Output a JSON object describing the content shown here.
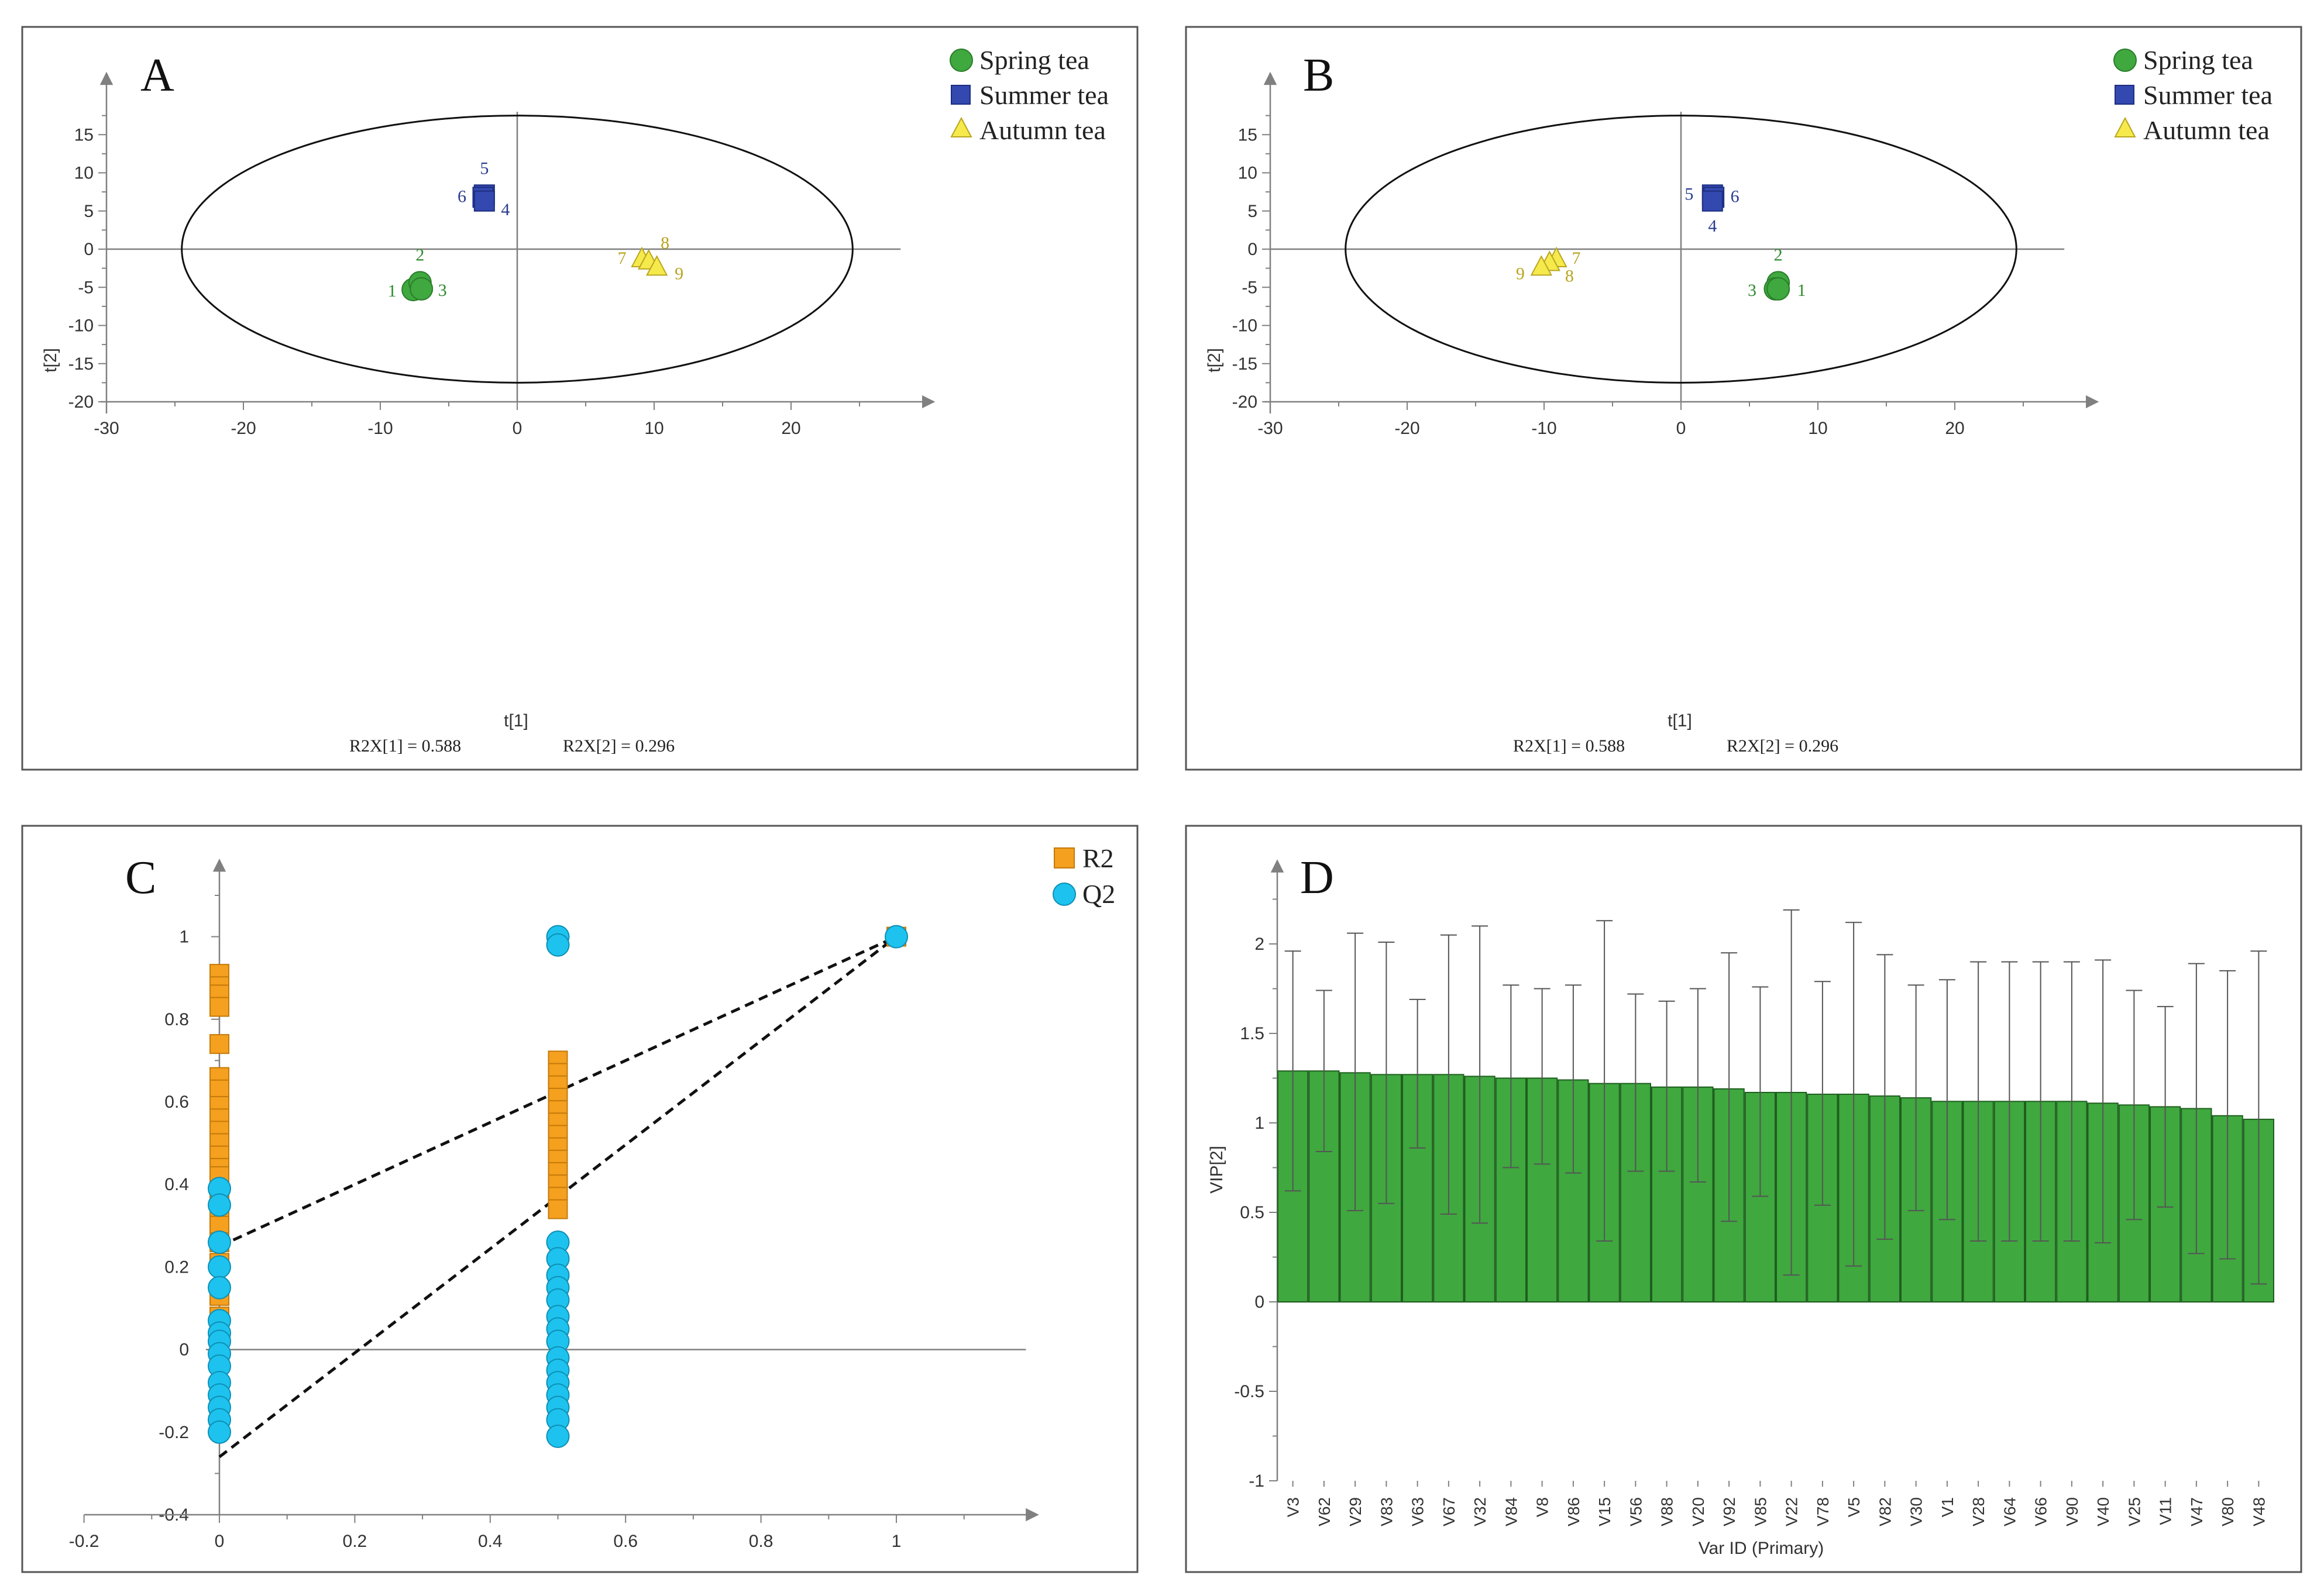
{
  "colors": {
    "spring": "#3fa83f",
    "spring_edge": "#2a7d2a",
    "summer": "#3349b0",
    "summer_edge": "#1d2e80",
    "autumn": "#f6e94c",
    "autumn_edge": "#b9a51f",
    "r2": "#f5a01e",
    "r2_edge": "#c57a0a",
    "q2": "#1dc3ee",
    "q2_edge": "#0f8fb5",
    "vip_bar": "#3fa83f",
    "vip_bar_edge": "#1f5f1f",
    "axis": "#808080",
    "ellipse": "#111111"
  },
  "chart_data": [
    {
      "panel": "A",
      "type": "scatter",
      "xlabel": "t[1]",
      "ylabel": "t[2]",
      "xlim": [
        -30,
        30
      ],
      "ylim": [
        -20,
        20
      ],
      "xticks": [
        -30,
        -20,
        -10,
        0,
        10,
        20
      ],
      "yticks": [
        15,
        10,
        5,
        0,
        -5,
        -10,
        -15,
        -20
      ],
      "ellipse": {
        "rx": 24.5,
        "ry": 17.5
      },
      "r2x_1": "R2X[1] = 0.588",
      "r2x_2": "R2X[2] = 0.296",
      "legend": [
        "Spring tea",
        "Summer tea",
        "Autumn tea"
      ],
      "series": [
        {
          "name": "Spring tea",
          "marker": "circle",
          "points": [
            {
              "label": "1",
              "x": -7.6,
              "y": -5.3
            },
            {
              "label": "2",
              "x": -7.1,
              "y": -4.4
            },
            {
              "label": "3",
              "x": -7.0,
              "y": -5.2
            }
          ]
        },
        {
          "name": "Summer tea",
          "marker": "square",
          "points": [
            {
              "label": "5",
              "x": -2.4,
              "y": 7.1
            },
            {
              "label": "6",
              "x": -2.5,
              "y": 6.8
            },
            {
              "label": "4",
              "x": -2.4,
              "y": 6.3
            }
          ]
        },
        {
          "name": "Autumn tea",
          "marker": "triangle",
          "points": [
            {
              "label": "7",
              "x": 9.1,
              "y": -1.3
            },
            {
              "label": "8",
              "x": 9.6,
              "y": -1.6
            },
            {
              "label": "9",
              "x": 10.2,
              "y": -2.4
            }
          ]
        }
      ]
    },
    {
      "panel": "B",
      "type": "scatter",
      "xlabel": "t[1]",
      "ylabel": "t[2]",
      "xlim": [
        -30,
        30
      ],
      "ylim": [
        -20,
        20
      ],
      "xticks": [
        -30,
        -20,
        -10,
        0,
        10,
        20
      ],
      "yticks": [
        15,
        10,
        5,
        0,
        -5,
        -10,
        -15,
        -20
      ],
      "ellipse": {
        "rx": 24.5,
        "ry": 17.5
      },
      "r2x_1": "R2X[1] = 0.588",
      "r2x_2": "R2X[2] = 0.296",
      "legend": [
        "Spring tea",
        "Summer tea",
        "Autumn tea"
      ],
      "series": [
        {
          "name": "Spring tea",
          "marker": "circle",
          "points": [
            {
              "label": "2",
              "x": 7.1,
              "y": -4.4
            },
            {
              "label": "3",
              "x": 6.9,
              "y": -5.2
            },
            {
              "label": "1",
              "x": 7.1,
              "y": -5.2
            }
          ]
        },
        {
          "name": "Summer tea",
          "marker": "square",
          "points": [
            {
              "label": "5",
              "x": 2.3,
              "y": 7.1
            },
            {
              "label": "6",
              "x": 2.4,
              "y": 6.8
            },
            {
              "label": "4",
              "x": 2.3,
              "y": 6.3
            }
          ]
        },
        {
          "name": "Autumn tea",
          "marker": "triangle",
          "points": [
            {
              "label": "7",
              "x": -9.1,
              "y": -1.3
            },
            {
              "label": "8",
              "x": -9.6,
              "y": -1.8
            },
            {
              "label": "9",
              "x": -10.2,
              "y": -2.4
            }
          ]
        }
      ]
    },
    {
      "panel": "C",
      "type": "scatter",
      "xlim": [
        -0.2,
        1.2
      ],
      "ylim": [
        -0.4,
        1.2
      ],
      "xticks": [
        -0.2,
        0,
        0.2,
        0.4,
        0.6,
        0.8,
        1
      ],
      "yticks": [
        1,
        0.8,
        0.6,
        0.4,
        0.2,
        0,
        -0.2,
        -0.4
      ],
      "legend": [
        "R2",
        "Q2"
      ],
      "series": [
        {
          "name": "R2",
          "marker": "square",
          "points": [
            {
              "x": 0,
              "y": 0.91
            },
            {
              "x": 0,
              "y": 0.88
            },
            {
              "x": 0,
              "y": 0.86
            },
            {
              "x": 0,
              "y": 0.83
            },
            {
              "x": 0,
              "y": 0.74
            },
            {
              "x": 0,
              "y": 0.66
            },
            {
              "x": 0,
              "y": 0.63
            },
            {
              "x": 0,
              "y": 0.59
            },
            {
              "x": 0,
              "y": 0.56
            },
            {
              "x": 0,
              "y": 0.53
            },
            {
              "x": 0,
              "y": 0.5
            },
            {
              "x": 0,
              "y": 0.47
            },
            {
              "x": 0,
              "y": 0.44
            },
            {
              "x": 0,
              "y": 0.42
            },
            {
              "x": 0,
              "y": 0.38
            },
            {
              "x": 0,
              "y": 0.33
            },
            {
              "x": 0,
              "y": 0.3
            },
            {
              "x": 0,
              "y": 0.26
            },
            {
              "x": 0,
              "y": 0.21
            },
            {
              "x": 0,
              "y": 0.13
            },
            {
              "x": 0,
              "y": 0.08
            },
            {
              "x": 0.5,
              "y": 0.7
            },
            {
              "x": 0.5,
              "y": 0.67
            },
            {
              "x": 0.5,
              "y": 0.64
            },
            {
              "x": 0.5,
              "y": 0.61
            },
            {
              "x": 0.5,
              "y": 0.58
            },
            {
              "x": 0.5,
              "y": 0.55
            },
            {
              "x": 0.5,
              "y": 0.52
            },
            {
              "x": 0.5,
              "y": 0.49
            },
            {
              "x": 0.5,
              "y": 0.46
            },
            {
              "x": 0.5,
              "y": 0.43
            },
            {
              "x": 0.5,
              "y": 0.4
            },
            {
              "x": 0.5,
              "y": 0.37
            },
            {
              "x": 0.5,
              "y": 0.34
            },
            {
              "x": 1,
              "y": 1.0
            }
          ]
        },
        {
          "name": "Q2",
          "marker": "circle",
          "points": [
            {
              "x": 0,
              "y": 0.39
            },
            {
              "x": 0,
              "y": 0.35
            },
            {
              "x": 0,
              "y": 0.26
            },
            {
              "x": 0,
              "y": 0.2
            },
            {
              "x": 0,
              "y": 0.15
            },
            {
              "x": 0,
              "y": 0.07
            },
            {
              "x": 0,
              "y": 0.04
            },
            {
              "x": 0,
              "y": 0.02
            },
            {
              "x": 0,
              "y": -0.01
            },
            {
              "x": 0,
              "y": -0.04
            },
            {
              "x": 0,
              "y": -0.08
            },
            {
              "x": 0,
              "y": -0.11
            },
            {
              "x": 0,
              "y": -0.14
            },
            {
              "x": 0,
              "y": -0.17
            },
            {
              "x": 0,
              "y": -0.2
            },
            {
              "x": 0.5,
              "y": 1.0
            },
            {
              "x": 0.5,
              "y": 0.98
            },
            {
              "x": 0.5,
              "y": 0.26
            },
            {
              "x": 0.5,
              "y": 0.22
            },
            {
              "x": 0.5,
              "y": 0.18
            },
            {
              "x": 0.5,
              "y": 0.15
            },
            {
              "x": 0.5,
              "y": 0.12
            },
            {
              "x": 0.5,
              "y": 0.08
            },
            {
              "x": 0.5,
              "y": 0.05
            },
            {
              "x": 0.5,
              "y": 0.02
            },
            {
              "x": 0.5,
              "y": -0.02
            },
            {
              "x": 0.5,
              "y": -0.05
            },
            {
              "x": 0.5,
              "y": -0.08
            },
            {
              "x": 0.5,
              "y": -0.11
            },
            {
              "x": 0.5,
              "y": -0.14
            },
            {
              "x": 0.5,
              "y": -0.17
            },
            {
              "x": 0.5,
              "y": -0.21
            },
            {
              "x": 1,
              "y": 1.0
            }
          ]
        }
      ],
      "regression_lines": [
        {
          "name": "R2",
          "intercept": 0.25,
          "slope": 0.75
        },
        {
          "name": "Q2",
          "intercept": -0.26,
          "slope": 1.26
        }
      ]
    },
    {
      "panel": "D",
      "type": "bar",
      "xlabel": "Var ID (Primary)",
      "ylabel": "VIP[2]",
      "ylim": [
        -1,
        2.4
      ],
      "yticks": [
        2,
        1.5,
        1,
        0.5,
        0,
        -0.5,
        -1
      ],
      "categories": [
        "V3",
        "V62",
        "V29",
        "V83",
        "V63",
        "V67",
        "V32",
        "V84",
        "V8",
        "V86",
        "V15",
        "V56",
        "V88",
        "V20",
        "V92",
        "V85",
        "V22",
        "V78",
        "V5",
        "V82",
        "V30",
        "V1",
        "V28",
        "V64",
        "V66",
        "V90",
        "V40",
        "V25",
        "V11",
        "V47",
        "V80",
        "V48"
      ],
      "values": [
        1.29,
        1.29,
        1.28,
        1.27,
        1.27,
        1.27,
        1.26,
        1.25,
        1.25,
        1.24,
        1.22,
        1.22,
        1.2,
        1.2,
        1.19,
        1.17,
        1.17,
        1.16,
        1.16,
        1.15,
        1.14,
        1.12,
        1.12,
        1.12,
        1.12,
        1.12,
        1.11,
        1.1,
        1.09,
        1.08,
        1.04,
        1.02
      ],
      "err_low": [
        0.62,
        0.84,
        0.51,
        0.55,
        0.86,
        0.49,
        0.44,
        0.75,
        0.77,
        0.72,
        0.34,
        0.73,
        0.73,
        0.67,
        0.45,
        0.59,
        0.15,
        0.54,
        0.2,
        0.35,
        0.51,
        0.46,
        0.34,
        0.34,
        0.34,
        0.34,
        0.33,
        0.46,
        0.53,
        0.27,
        0.24,
        0.1
      ],
      "err_high": [
        1.96,
        1.74,
        2.06,
        2.01,
        1.69,
        2.05,
        2.1,
        1.77,
        1.75,
        1.77,
        2.13,
        1.72,
        1.68,
        1.75,
        1.95,
        1.76,
        2.19,
        1.79,
        2.12,
        1.94,
        1.77,
        1.8,
        1.9,
        1.9,
        1.9,
        1.9,
        1.91,
        1.74,
        1.65,
        1.89,
        1.85,
        1.96
      ]
    }
  ]
}
